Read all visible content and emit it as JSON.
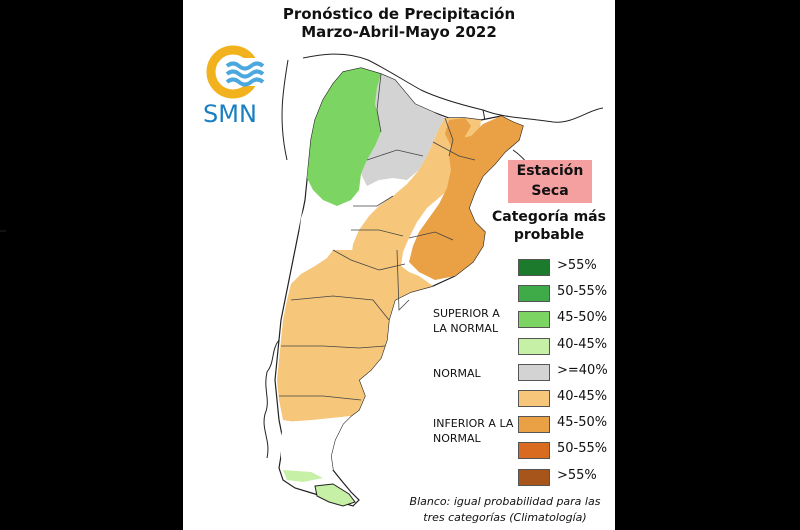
{
  "title_line1": "Pronóstico de Precipitación",
  "title_line2": "Marzo-Abril-Mayo 2022",
  "logo_text": "SMN",
  "season_label": "Estación Seca",
  "category_title": "Categoría más probable",
  "groups": {
    "superior": "SUPERIOR A LA NORMAL",
    "normal": "NORMAL",
    "inferior": "INFERIOR A LA NORMAL"
  },
  "legend": [
    {
      "label": ">55%",
      "color": "#1b7a2c"
    },
    {
      "label": "50-55%",
      "color": "#3eaa48"
    },
    {
      "label": "45-50%",
      "color": "#7cd563"
    },
    {
      "label": "40-45%",
      "color": "#c6f0a6"
    },
    {
      "label": ">=40%",
      "color": "#d3d3d3"
    },
    {
      "label": "40-45%",
      "color": "#f6c77b"
    },
    {
      "label": "45-50%",
      "color": "#eaa044"
    },
    {
      "label": "50-55%",
      "color": "#d96b20"
    },
    {
      "label": ">55%",
      "color": "#a8551c"
    }
  ],
  "footnote": "Blanco: igual probabilidad para las tres categorías (Climatología)"
}
